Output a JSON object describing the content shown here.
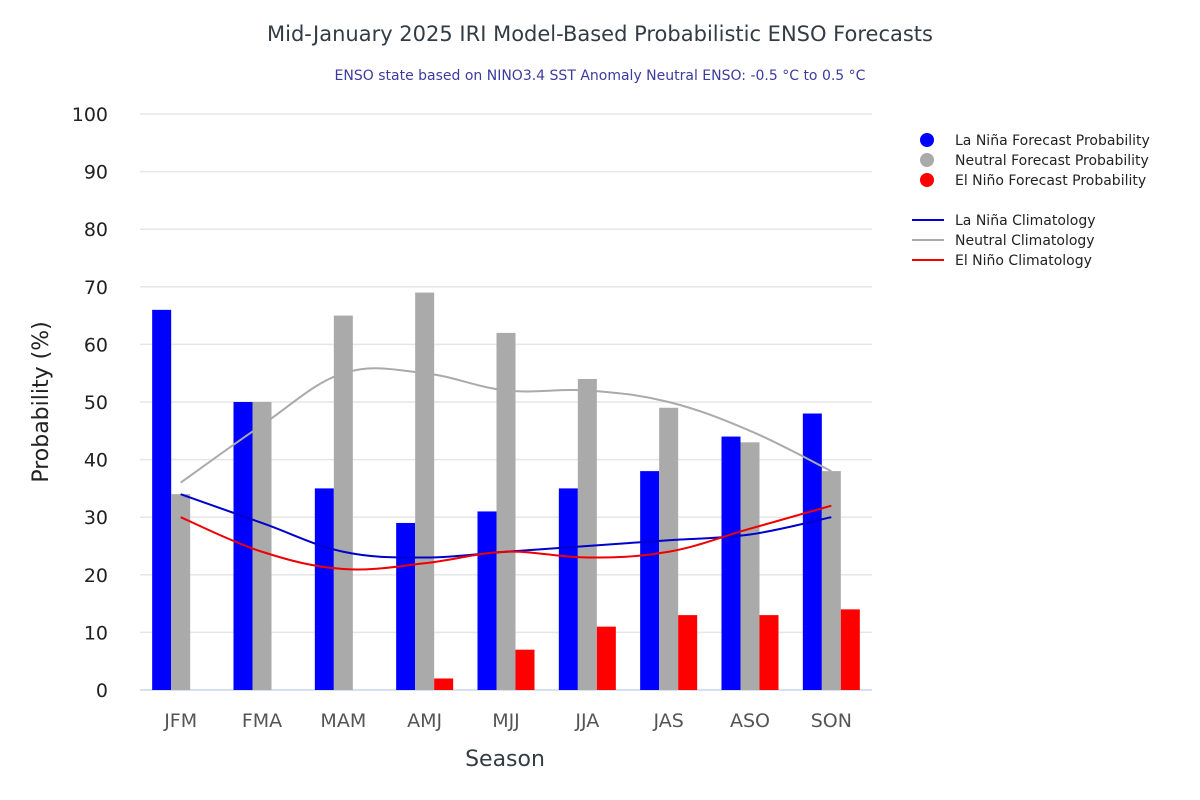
{
  "chart_data": {
    "type": "bar",
    "title": "Mid-January 2025 IRI Model-Based Probabilistic ENSO Forecasts",
    "subtitle": "ENSO state based on NINO3.4 SST Anomaly Neutral ENSO: -0.5 °C to 0.5 °C",
    "xlabel": "Season",
    "ylabel": "Probability (%)",
    "ylim": [
      0,
      100
    ],
    "yticks": [
      0,
      10,
      20,
      30,
      40,
      50,
      60,
      70,
      80,
      90,
      100
    ],
    "grid": true,
    "legend_position": "right",
    "categories": [
      "JFM",
      "FMA",
      "MAM",
      "AMJ",
      "MJJ",
      "JJA",
      "JAS",
      "ASO",
      "SON"
    ],
    "series": [
      {
        "name": "La Niña Forecast Probability",
        "kind": "bar",
        "color": "#0000ff",
        "values": [
          66,
          50,
          35,
          29,
          31,
          35,
          38,
          44,
          48
        ]
      },
      {
        "name": "Neutral Forecast Probability",
        "kind": "bar",
        "color": "#aaaaaa",
        "values": [
          34,
          50,
          65,
          69,
          62,
          54,
          49,
          43,
          38
        ]
      },
      {
        "name": "El Niño Forecast Probability",
        "kind": "bar",
        "color": "#ff0000",
        "values": [
          0,
          0,
          0,
          2,
          7,
          11,
          13,
          13,
          14
        ]
      },
      {
        "name": "La Niña Climatology",
        "kind": "line",
        "color": "#0000cc",
        "values": [
          34,
          29,
          24,
          23,
          24,
          25,
          26,
          27,
          30
        ]
      },
      {
        "name": "Neutral Climatology",
        "kind": "line",
        "color": "#aaaaaa",
        "values": [
          36,
          46,
          55,
          55,
          52,
          52,
          50,
          45,
          38
        ]
      },
      {
        "name": "El Niño Climatology",
        "kind": "line",
        "color": "#ee0000",
        "values": [
          30,
          24,
          21,
          22,
          24,
          23,
          24,
          28,
          32
        ]
      }
    ]
  }
}
